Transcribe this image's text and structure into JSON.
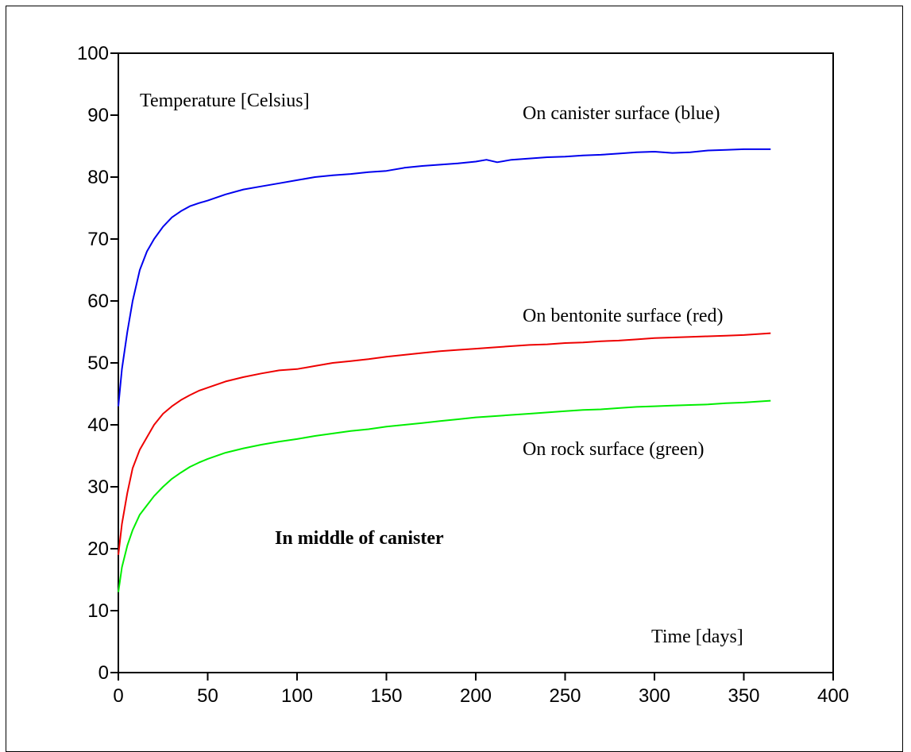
{
  "chart_data": {
    "type": "line",
    "title": "",
    "xlabel": "Time [days]",
    "ylabel": "Temperature [Celsius]",
    "annotation": "In middle of canister",
    "xlim": [
      0,
      400
    ],
    "ylim": [
      0,
      100
    ],
    "x_ticks": [
      0,
      50,
      100,
      150,
      200,
      250,
      300,
      350,
      400
    ],
    "y_ticks": [
      0,
      10,
      20,
      30,
      40,
      50,
      60,
      70,
      80,
      90,
      100
    ],
    "grid": false,
    "series": [
      {
        "name": "On canister surface (blue)",
        "color": "#0000ee",
        "x": [
          0,
          2,
          5,
          8,
          12,
          16,
          20,
          25,
          30,
          35,
          40,
          45,
          50,
          60,
          70,
          80,
          90,
          100,
          110,
          120,
          130,
          140,
          150,
          160,
          170,
          180,
          190,
          200,
          206,
          212,
          220,
          230,
          240,
          250,
          260,
          270,
          280,
          290,
          300,
          310,
          320,
          330,
          340,
          350,
          365
        ],
        "values": [
          43,
          49,
          55,
          60,
          65,
          68,
          70,
          72,
          73.5,
          74.5,
          75.3,
          75.8,
          76.2,
          77.2,
          78,
          78.5,
          79,
          79.5,
          80,
          80.3,
          80.5,
          80.8,
          81,
          81.5,
          81.8,
          82,
          82.2,
          82.5,
          82.8,
          82.4,
          82.8,
          83,
          83.2,
          83.3,
          83.5,
          83.6,
          83.8,
          84,
          84.1,
          83.9,
          84,
          84.3,
          84.4,
          84.5,
          84.5
        ]
      },
      {
        "name": "On bentonite surface (red)",
        "color": "#ee0000",
        "x": [
          0,
          2,
          5,
          8,
          12,
          16,
          20,
          25,
          30,
          35,
          40,
          45,
          50,
          60,
          70,
          80,
          90,
          100,
          110,
          120,
          130,
          140,
          150,
          160,
          170,
          180,
          190,
          200,
          210,
          220,
          230,
          240,
          250,
          260,
          270,
          280,
          290,
          300,
          310,
          320,
          330,
          340,
          350,
          365
        ],
        "values": [
          19,
          24,
          29,
          33,
          36,
          38,
          40,
          41.8,
          43,
          44,
          44.8,
          45.5,
          46,
          47,
          47.7,
          48.3,
          48.8,
          49,
          49.5,
          50,
          50.3,
          50.6,
          51,
          51.3,
          51.6,
          51.9,
          52.1,
          52.3,
          52.5,
          52.7,
          52.9,
          53,
          53.2,
          53.3,
          53.5,
          53.6,
          53.8,
          54,
          54.1,
          54.2,
          54.3,
          54.4,
          54.5,
          54.8
        ]
      },
      {
        "name": "On rock surface (green)",
        "color": "#00ee00",
        "x": [
          0,
          2,
          5,
          8,
          12,
          16,
          20,
          25,
          30,
          35,
          40,
          45,
          50,
          60,
          70,
          80,
          90,
          100,
          110,
          120,
          130,
          140,
          150,
          160,
          170,
          180,
          190,
          200,
          210,
          220,
          230,
          240,
          250,
          260,
          270,
          280,
          290,
          300,
          310,
          320,
          330,
          340,
          350,
          365
        ],
        "values": [
          13,
          17,
          20.5,
          23,
          25.5,
          27,
          28.5,
          30,
          31.3,
          32.3,
          33.2,
          33.9,
          34.5,
          35.5,
          36.2,
          36.8,
          37.3,
          37.7,
          38.2,
          38.6,
          39,
          39.3,
          39.7,
          40,
          40.3,
          40.6,
          40.9,
          41.2,
          41.4,
          41.6,
          41.8,
          42,
          42.2,
          42.4,
          42.5,
          42.7,
          42.9,
          43,
          43.1,
          43.2,
          43.3,
          43.5,
          43.6,
          43.9
        ]
      }
    ]
  }
}
